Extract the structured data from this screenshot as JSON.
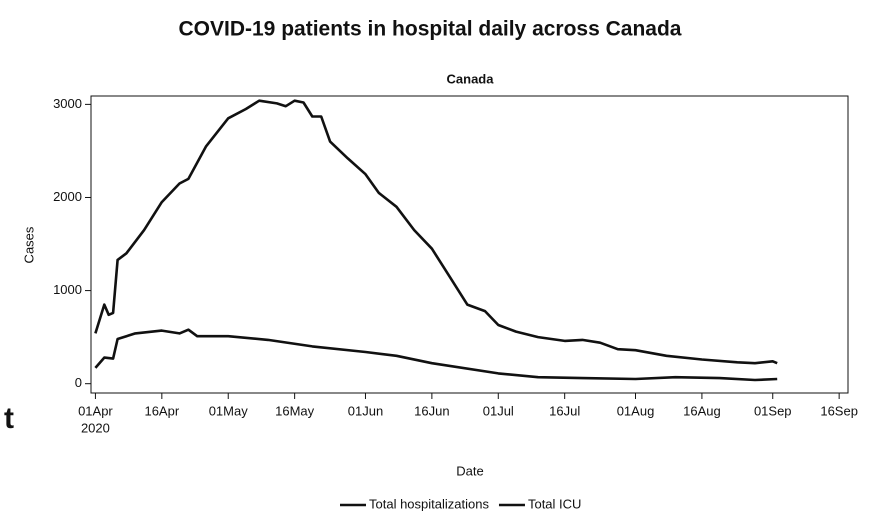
{
  "chart_data": {
    "type": "line",
    "title": "COVID-19 patients in hospital daily across Canada",
    "subtitle": "Canada",
    "y_label": "Cases",
    "x_label": "Date",
    "side_text": "t",
    "xlim": [
      "2020-03-31",
      "2020-09-18"
    ],
    "xticks": [
      {
        "value": "2020-04-01",
        "label": "01Apr"
      },
      {
        "value": "2020-04-16",
        "label": "16Apr"
      },
      {
        "value": "2020-05-01",
        "label": "01May"
      },
      {
        "value": "2020-05-16",
        "label": "16May"
      },
      {
        "value": "2020-06-01",
        "label": "01Jun"
      },
      {
        "value": "2020-06-16",
        "label": "16Jun"
      },
      {
        "value": "2020-07-01",
        "label": "01Jul"
      },
      {
        "value": "2020-07-16",
        "label": "16Jul"
      },
      {
        "value": "2020-08-01",
        "label": "01Aug"
      },
      {
        "value": "2020-08-16",
        "label": "16Aug"
      },
      {
        "value": "2020-09-01",
        "label": "01Sep"
      },
      {
        "value": "2020-09-16",
        "label": "16Sep"
      }
    ],
    "xtick_year": "2020",
    "ylim": [
      -100,
      3090
    ],
    "yticks": [
      0,
      1000,
      2000,
      3000
    ],
    "series": [
      {
        "name": "Total hospitalizations",
        "color": "#111111",
        "x": [
          "2020-04-01",
          "2020-04-03",
          "2020-04-04",
          "2020-04-05",
          "2020-04-06",
          "2020-04-08",
          "2020-04-12",
          "2020-04-16",
          "2020-04-20",
          "2020-04-22",
          "2020-04-26",
          "2020-05-01",
          "2020-05-05",
          "2020-05-08",
          "2020-05-12",
          "2020-05-14",
          "2020-05-16",
          "2020-05-18",
          "2020-05-20",
          "2020-05-22",
          "2020-05-24",
          "2020-05-28",
          "2020-06-01",
          "2020-06-04",
          "2020-06-08",
          "2020-06-12",
          "2020-06-16",
          "2020-06-20",
          "2020-06-24",
          "2020-06-28",
          "2020-07-01",
          "2020-07-05",
          "2020-07-10",
          "2020-07-16",
          "2020-07-20",
          "2020-07-24",
          "2020-07-28",
          "2020-08-01",
          "2020-08-08",
          "2020-08-16",
          "2020-08-24",
          "2020-08-28",
          "2020-09-01",
          "2020-09-02"
        ],
        "values": [
          540,
          850,
          740,
          760,
          1330,
          1400,
          1650,
          1950,
          2150,
          2200,
          2550,
          2850,
          2950,
          3040,
          3010,
          2980,
          3040,
          3020,
          2870,
          2870,
          2600,
          2420,
          2250,
          2050,
          1900,
          1650,
          1450,
          1150,
          850,
          780,
          630,
          560,
          500,
          460,
          470,
          440,
          370,
          360,
          300,
          260,
          230,
          220,
          240,
          220
        ]
      },
      {
        "name": "Total ICU",
        "color": "#111111",
        "x": [
          "2020-04-01",
          "2020-04-03",
          "2020-04-05",
          "2020-04-06",
          "2020-04-10",
          "2020-04-16",
          "2020-04-20",
          "2020-04-22",
          "2020-04-24",
          "2020-05-01",
          "2020-05-10",
          "2020-05-20",
          "2020-06-01",
          "2020-06-08",
          "2020-06-16",
          "2020-07-01",
          "2020-07-10",
          "2020-07-20",
          "2020-08-01",
          "2020-08-10",
          "2020-08-20",
          "2020-08-28",
          "2020-09-02"
        ],
        "values": [
          170,
          280,
          270,
          480,
          540,
          570,
          540,
          580,
          510,
          510,
          470,
          400,
          340,
          300,
          220,
          110,
          70,
          60,
          50,
          70,
          60,
          40,
          50
        ]
      }
    ]
  }
}
